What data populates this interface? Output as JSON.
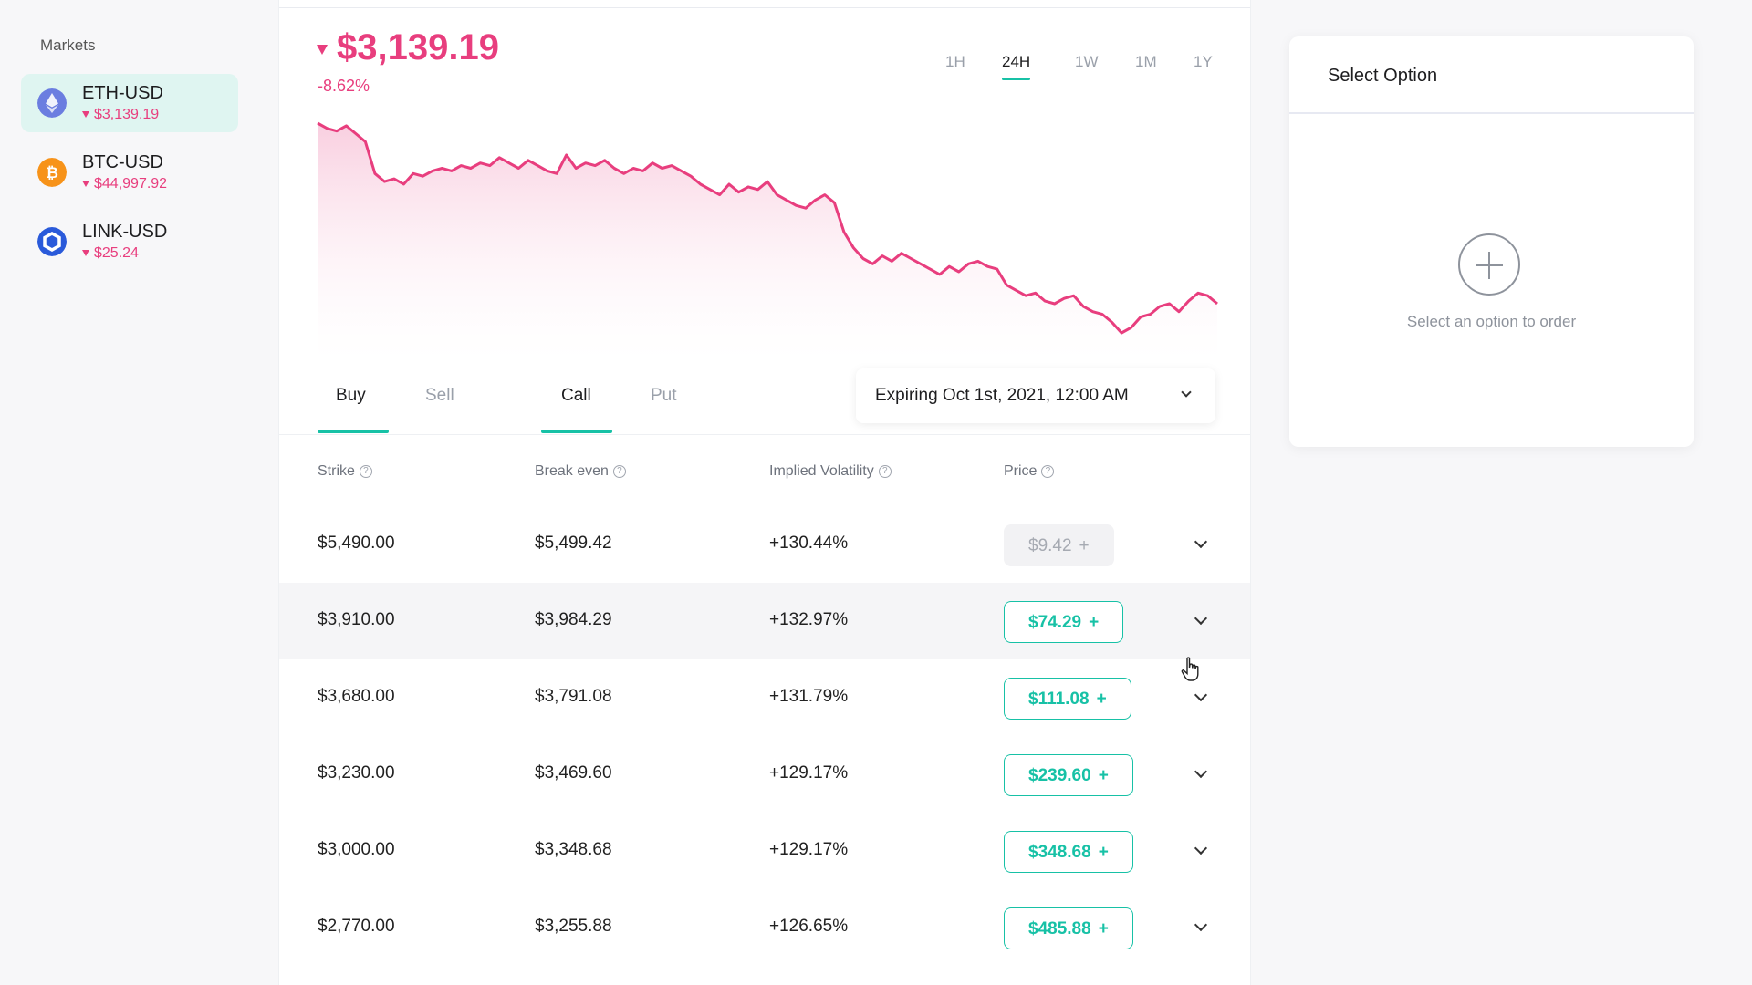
{
  "sidebar": {
    "title": "Markets",
    "markets": [
      {
        "name": "ETH-USD",
        "price": "$3,139.19",
        "icon": "ethereum-icon",
        "color": "#6b7de0"
      },
      {
        "name": "BTC-USD",
        "price": "$44,997.92",
        "icon": "bitcoin-icon",
        "color": "#f7931a"
      },
      {
        "name": "LINK-USD",
        "price": "$25.24",
        "icon": "chainlink-icon",
        "color": "#2a5ada"
      }
    ]
  },
  "header": {
    "price": "$3,139.19",
    "change": "-8.62%",
    "ranges": [
      "1H",
      "24H",
      "1W",
      "1M",
      "1Y"
    ],
    "active_range": "24H"
  },
  "chart_data": {
    "type": "area",
    "title": "",
    "xlabel": "",
    "ylabel": "",
    "color": "#e83e7e",
    "values": [
      3435,
      3425,
      3420,
      3430,
      3415,
      3400,
      3340,
      3325,
      3330,
      3320,
      3340,
      3335,
      3345,
      3350,
      3345,
      3355,
      3350,
      3360,
      3355,
      3370,
      3360,
      3350,
      3365,
      3355,
      3345,
      3340,
      3375,
      3350,
      3360,
      3355,
      3365,
      3350,
      3340,
      3350,
      3345,
      3360,
      3350,
      3355,
      3345,
      3335,
      3320,
      3310,
      3300,
      3320,
      3305,
      3315,
      3310,
      3325,
      3300,
      3290,
      3280,
      3275,
      3290,
      3300,
      3285,
      3230,
      3200,
      3180,
      3170,
      3185,
      3175,
      3190,
      3180,
      3170,
      3160,
      3150,
      3165,
      3155,
      3170,
      3175,
      3165,
      3160,
      3130,
      3120,
      3110,
      3115,
      3100,
      3095,
      3105,
      3110,
      3090,
      3080,
      3075,
      3060,
      3040,
      3050,
      3070,
      3075,
      3090,
      3095,
      3080,
      3100,
      3115,
      3110,
      3095
    ]
  },
  "tabs": {
    "side": [
      "Buy",
      "Sell"
    ],
    "type": [
      "Call",
      "Put"
    ],
    "expiry": "Expiring Oct 1st, 2021, 12:00 AM"
  },
  "table": {
    "headers": [
      "Strike",
      "Break even",
      "Implied Volatility",
      "Price"
    ],
    "rows": [
      {
        "strike": "$5,490.00",
        "break_even": "$5,499.42",
        "iv": "+130.44%",
        "price": "$9.42"
      },
      {
        "strike": "$3,910.00",
        "break_even": "$3,984.29",
        "iv": "+132.97%",
        "price": "$74.29"
      },
      {
        "strike": "$3,680.00",
        "break_even": "$3,791.08",
        "iv": "+131.79%",
        "price": "$111.08"
      },
      {
        "strike": "$3,230.00",
        "break_even": "$3,469.60",
        "iv": "+129.17%",
        "price": "$239.60"
      },
      {
        "strike": "$3,000.00",
        "break_even": "$3,348.68",
        "iv": "+129.17%",
        "price": "$348.68"
      },
      {
        "strike": "$2,770.00",
        "break_even": "$3,255.88",
        "iv": "+126.65%",
        "price": "$485.88"
      }
    ]
  },
  "order": {
    "title": "Select Option",
    "hint": "Select an option to order"
  },
  "colors": {
    "accent": "#17c1a6",
    "negative": "#e83e7e"
  }
}
